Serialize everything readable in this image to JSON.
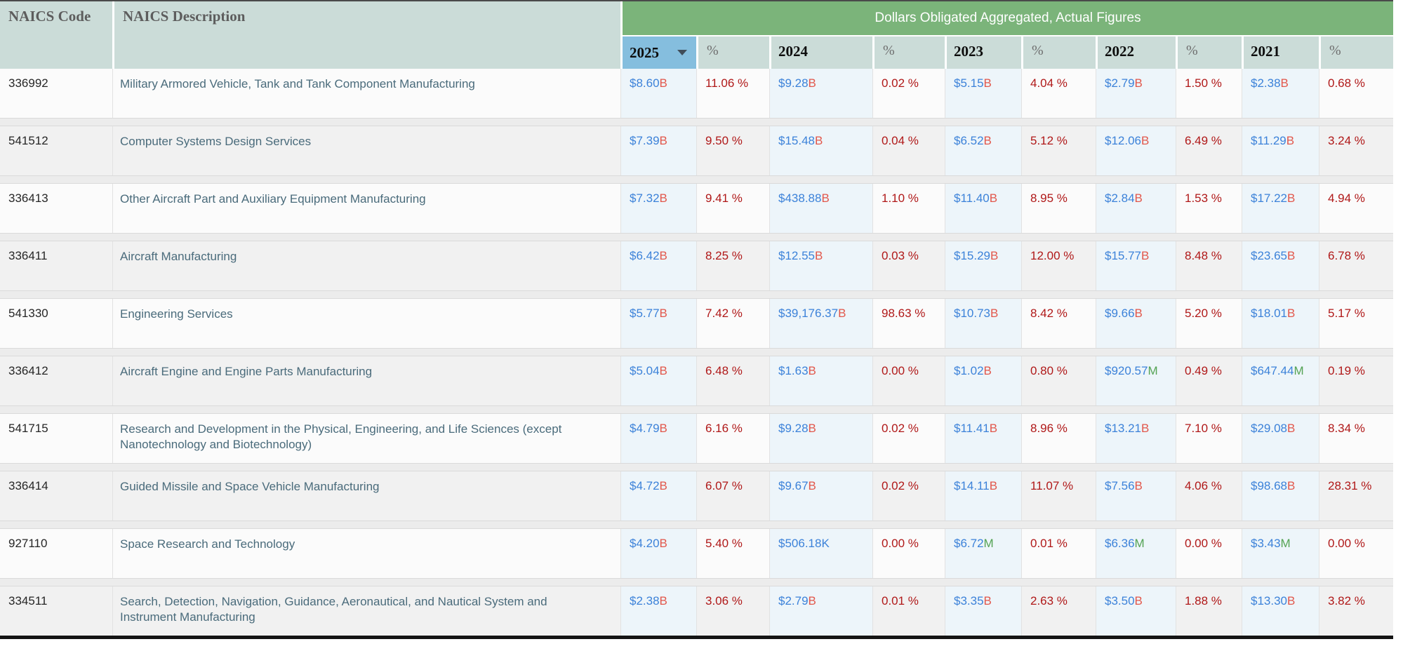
{
  "table": {
    "code_label": "NAICS Code",
    "desc_label": "NAICS Description",
    "banner": "Dollars Obligated Aggregated, Actual Figures",
    "pct_label": "%",
    "years": [
      "2025",
      "2024",
      "2023",
      "2022",
      "2021"
    ],
    "sort": {
      "column": "2025",
      "direction": "desc",
      "icon": "caret-down-icon"
    }
  },
  "colors": {
    "header_teal": "#cbdcd8",
    "banner_green": "#7bb47a",
    "sorted_column_blue": "#85bede",
    "value_cell_blue": "#edf5fa",
    "amount_blue": "#3c82d9",
    "suffix_billion_red": "#e2574b",
    "suffix_million_green": "#54a354",
    "suffix_thousand_blue": "#3c82d9",
    "percent_dark_red": "#b01818",
    "description_slate": "#4a6b7b"
  },
  "rows": [
    {
      "code": "336992",
      "description": "Military Armored Vehicle, Tank and Tank Component Manufacturing",
      "values": [
        {
          "amount": "$8.60",
          "suffix": "B",
          "pct": "11.06 %"
        },
        {
          "amount": "$9.28",
          "suffix": "B",
          "pct": "0.02 %"
        },
        {
          "amount": "$5.15",
          "suffix": "B",
          "pct": "4.04 %"
        },
        {
          "amount": "$2.79",
          "suffix": "B",
          "pct": "1.50 %"
        },
        {
          "amount": "$2.38",
          "suffix": "B",
          "pct": "0.68 %"
        }
      ]
    },
    {
      "code": "541512",
      "description": "Computer Systems Design Services",
      "values": [
        {
          "amount": "$7.39",
          "suffix": "B",
          "pct": "9.50 %"
        },
        {
          "amount": "$15.48",
          "suffix": "B",
          "pct": "0.04 %"
        },
        {
          "amount": "$6.52",
          "suffix": "B",
          "pct": "5.12 %"
        },
        {
          "amount": "$12.06",
          "suffix": "B",
          "pct": "6.49 %"
        },
        {
          "amount": "$11.29",
          "suffix": "B",
          "pct": "3.24 %"
        }
      ]
    },
    {
      "code": "336413",
      "description": "Other Aircraft Part and Auxiliary Equipment Manufacturing",
      "values": [
        {
          "amount": "$7.32",
          "suffix": "B",
          "pct": "9.41 %"
        },
        {
          "amount": "$438.88",
          "suffix": "B",
          "pct": "1.10 %"
        },
        {
          "amount": "$11.40",
          "suffix": "B",
          "pct": "8.95 %"
        },
        {
          "amount": "$2.84",
          "suffix": "B",
          "pct": "1.53 %"
        },
        {
          "amount": "$17.22",
          "suffix": "B",
          "pct": "4.94 %"
        }
      ]
    },
    {
      "code": "336411",
      "description": "Aircraft Manufacturing",
      "values": [
        {
          "amount": "$6.42",
          "suffix": "B",
          "pct": "8.25 %"
        },
        {
          "amount": "$12.55",
          "suffix": "B",
          "pct": "0.03 %"
        },
        {
          "amount": "$15.29",
          "suffix": "B",
          "pct": "12.00 %"
        },
        {
          "amount": "$15.77",
          "suffix": "B",
          "pct": "8.48 %"
        },
        {
          "amount": "$23.65",
          "suffix": "B",
          "pct": "6.78 %"
        }
      ]
    },
    {
      "code": "541330",
      "description": "Engineering Services",
      "values": [
        {
          "amount": "$5.77",
          "suffix": "B",
          "pct": "7.42 %"
        },
        {
          "amount": "$39,176.37",
          "suffix": "B",
          "pct": "98.63 %"
        },
        {
          "amount": "$10.73",
          "suffix": "B",
          "pct": "8.42 %"
        },
        {
          "amount": "$9.66",
          "suffix": "B",
          "pct": "5.20 %"
        },
        {
          "amount": "$18.01",
          "suffix": "B",
          "pct": "5.17 %"
        }
      ]
    },
    {
      "code": "336412",
      "description": "Aircraft Engine and Engine Parts Manufacturing",
      "values": [
        {
          "amount": "$5.04",
          "suffix": "B",
          "pct": "6.48 %"
        },
        {
          "amount": "$1.63",
          "suffix": "B",
          "pct": "0.00 %"
        },
        {
          "amount": "$1.02",
          "suffix": "B",
          "pct": "0.80 %"
        },
        {
          "amount": "$920.57",
          "suffix": "M",
          "pct": "0.49 %"
        },
        {
          "amount": "$647.44",
          "suffix": "M",
          "pct": "0.19 %"
        }
      ]
    },
    {
      "code": "541715",
      "description": "Research and Development in the Physical, Engineering, and Life Sciences (except Nanotechnology and Biotechnology)",
      "values": [
        {
          "amount": "$4.79",
          "suffix": "B",
          "pct": "6.16 %"
        },
        {
          "amount": "$9.28",
          "suffix": "B",
          "pct": "0.02 %"
        },
        {
          "amount": "$11.41",
          "suffix": "B",
          "pct": "8.96 %"
        },
        {
          "amount": "$13.21",
          "suffix": "B",
          "pct": "7.10 %"
        },
        {
          "amount": "$29.08",
          "suffix": "B",
          "pct": "8.34 %"
        }
      ]
    },
    {
      "code": "336414",
      "description": "Guided Missile and Space Vehicle Manufacturing",
      "values": [
        {
          "amount": "$4.72",
          "suffix": "B",
          "pct": "6.07 %"
        },
        {
          "amount": "$9.67",
          "suffix": "B",
          "pct": "0.02 %"
        },
        {
          "amount": "$14.11",
          "suffix": "B",
          "pct": "11.07 %"
        },
        {
          "amount": "$7.56",
          "suffix": "B",
          "pct": "4.06 %"
        },
        {
          "amount": "$98.68",
          "suffix": "B",
          "pct": "28.31 %"
        }
      ]
    },
    {
      "code": "927110",
      "description": "Space Research and Technology",
      "values": [
        {
          "amount": "$4.20",
          "suffix": "B",
          "pct": "5.40 %"
        },
        {
          "amount": "$506.18",
          "suffix": "K",
          "pct": "0.00 %"
        },
        {
          "amount": "$6.72",
          "suffix": "M",
          "pct": "0.01 %"
        },
        {
          "amount": "$6.36",
          "suffix": "M",
          "pct": "0.00 %"
        },
        {
          "amount": "$3.43",
          "suffix": "M",
          "pct": "0.00 %"
        }
      ]
    },
    {
      "code": "334511",
      "description": "Search, Detection, Navigation, Guidance, Aeronautical, and Nautical System and Instrument Manufacturing",
      "values": [
        {
          "amount": "$2.38",
          "suffix": "B",
          "pct": "3.06 %"
        },
        {
          "amount": "$2.79",
          "suffix": "B",
          "pct": "0.01 %"
        },
        {
          "amount": "$3.35",
          "suffix": "B",
          "pct": "2.63 %"
        },
        {
          "amount": "$3.50",
          "suffix": "B",
          "pct": "1.88 %"
        },
        {
          "amount": "$13.30",
          "suffix": "B",
          "pct": "3.82 %"
        }
      ]
    }
  ]
}
